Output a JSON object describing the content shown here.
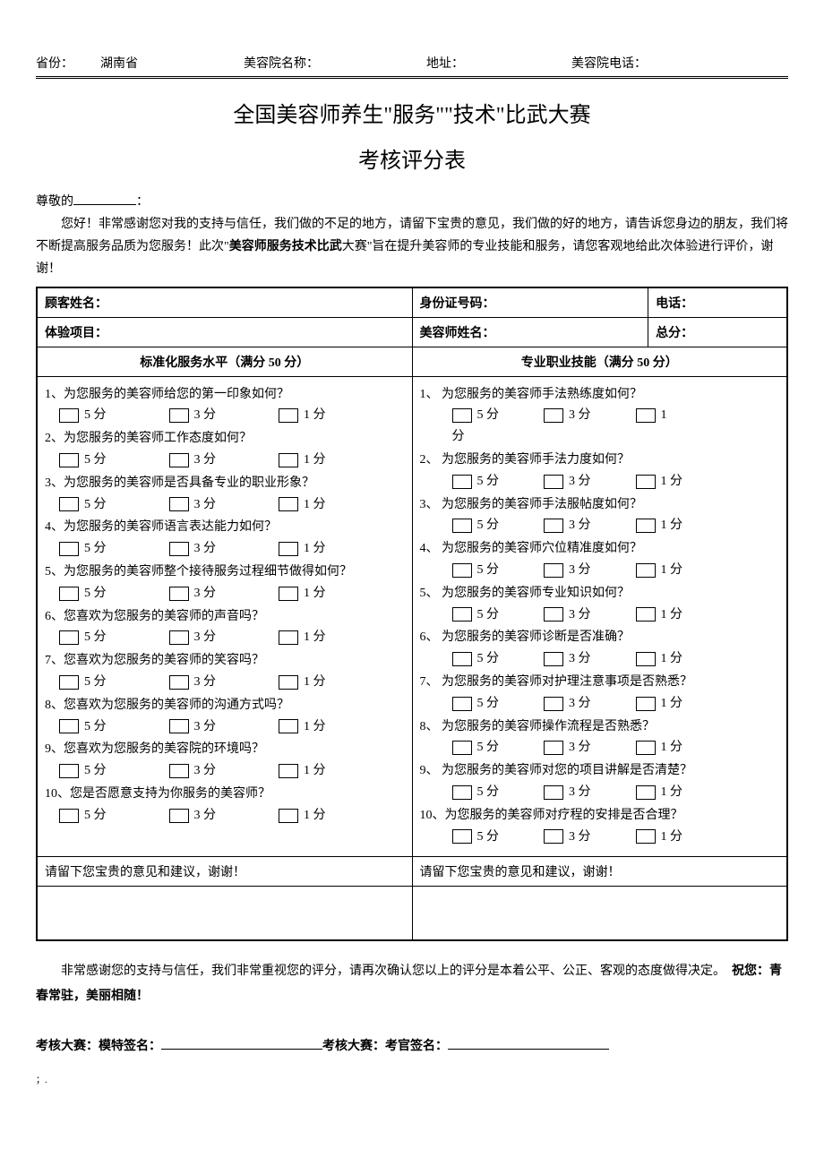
{
  "header": {
    "province_label": "省份：",
    "province_value": "湖南省",
    "salon_name_label": "美容院名称：",
    "address_label": "地址：",
    "salon_phone_label": "美容院电话："
  },
  "title_line1": "全国美容师养生\"服务\"\"技术\"比武大赛",
  "title_line2": "考核评分表",
  "greeting_prefix": "尊敬的",
  "greeting_suffix": "：",
  "intro_text_1": "您好！非常感谢您对我的支持与信任，我们做的不足的地方，请留下宝贵的意见，我们做的好的地方，请告诉您身边的朋友，我们将不断提高服务品质为您服务！此次\"",
  "intro_bold": "美容师服务技术比武",
  "intro_text_2": "大赛\"旨在提升美容师的专业技能和服务，请您客观地给此次体验进行评价，谢谢！",
  "info": {
    "customer_name": "顾客姓名：",
    "id_number": "身份证号码：",
    "phone": "电话：",
    "project": "体验项目：",
    "beautician_name": "美容师姓名：",
    "total_score": "总分："
  },
  "section_left_title": "标准化服务水平（满分 50 分）",
  "section_right_title": "专业职业技能（满分 50 分）",
  "score_5": "5 分",
  "score_3": "3 分",
  "score_1": "1 分",
  "score_1_alt": "1分",
  "left_questions": [
    "1、为您服务的美容师给您的第一印象如何？",
    "2、为您服务的美容师工作态度如何？",
    "3、为您服务的美容师是否具备专业的职业形象？",
    "4、为您服务的美容师语言表达能力如何？",
    "5、为您服务的美容师整个接待服务过程细节做得如何？",
    "6、您喜欢为您服务的美容师的声音吗？",
    "7、您喜欢为您服务的美容师的笑容吗？",
    "8、您喜欢为您服务的美容师的沟通方式吗？",
    "9、您喜欢为您服务的美容院的环境吗？",
    "10、您是否愿意支持为你服务的美容师？"
  ],
  "right_questions": [
    "1、 为您服务的美容师手法熟练度如何？",
    "2、 为您服务的美容师手法力度如何？",
    "3、 为您服务的美容师手法服帖度如何？",
    "4、 为您服务的美容师穴位精准度如何？",
    "5、 为您服务的美容师专业知识如何？",
    "6、 为您服务的美容师诊断是否准确？",
    "7、 为您服务的美容师对护理注意事项是否熟悉？",
    "8、 为您服务的美容师操作流程是否熟悉？",
    "9、 为您服务的美容师对您的项目讲解是否清楚？",
    "10、为您服务的美容师对疗程的安排是否合理？"
  ],
  "feedback_text": "请留下您宝贵的意见和建议，谢谢！",
  "footer_1": "非常感谢您的支持与信任，我们非常重视您的评分，请再次确认您以上的评分是本着公平、公正、客观的态度做得决定。　",
  "footer_bold": "祝您：青春常驻，美丽相随！",
  "sig_model": "考核大赛：模特签名：",
  "sig_judge": "考核大赛：考官签名：",
  "tiny_mark": "；."
}
